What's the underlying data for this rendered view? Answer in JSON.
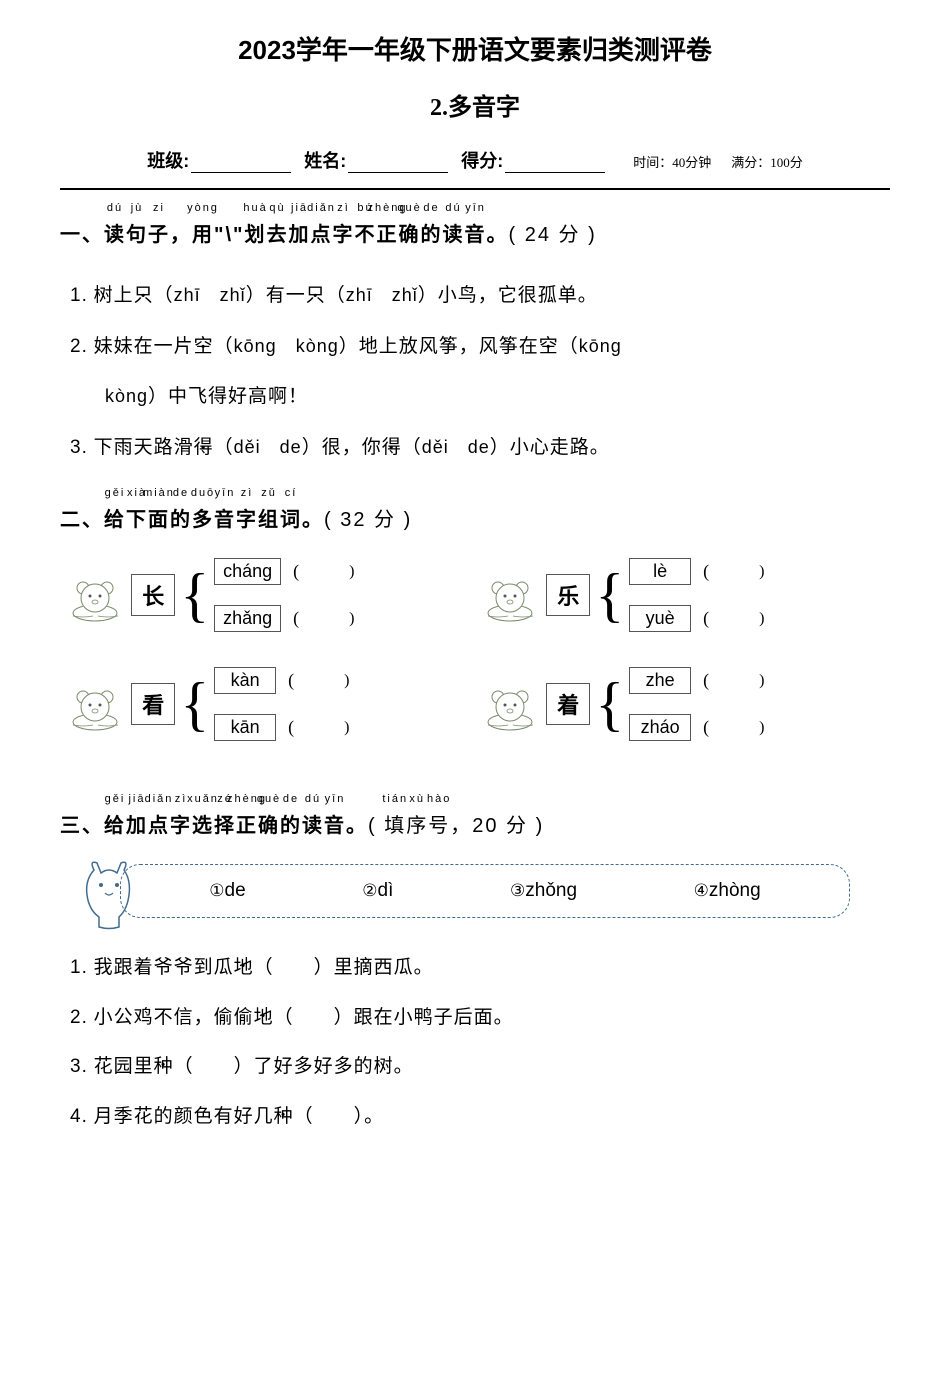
{
  "header": {
    "main_title": "2023学年一年级下册语文要素归类测评卷",
    "subtitle": "2.多音字",
    "class_label": "班级:",
    "name_label": "姓名:",
    "score_label": "得分:",
    "time_note": "时间：40分钟",
    "full_score_note": "满分：100分"
  },
  "section1": {
    "number": "一、",
    "title_chars": [
      "读",
      "句",
      "子",
      "，",
      "用",
      "\"",
      "\\",
      "\"",
      "划",
      "去",
      "加",
      "点",
      "字",
      "不",
      "正",
      "确",
      "的",
      "读",
      "音",
      "。"
    ],
    "title_pinyin": [
      "dú",
      "jù",
      "zi",
      "",
      "yòng",
      "",
      "",
      "",
      "huà",
      "qù",
      "jiā",
      "diǎn",
      "zì",
      "bú",
      "zhèng",
      "què",
      "de",
      "dú",
      "yīn",
      ""
    ],
    "points": "( 24 分 )",
    "items": [
      {
        "num": "1.",
        "parts": [
          {
            "t": "树上"
          },
          {
            "t": "只",
            "dot": true
          },
          {
            "t": "（"
          },
          {
            "t": "zhī　zhǐ",
            "py": true
          },
          {
            "t": "）有一"
          },
          {
            "t": "只",
            "dot": true
          },
          {
            "t": "（"
          },
          {
            "t": "zhī　zhǐ",
            "py": true
          },
          {
            "t": "）小鸟，它很孤单。"
          }
        ]
      },
      {
        "num": "2.",
        "parts": [
          {
            "t": "妹妹在一片"
          },
          {
            "t": "空",
            "dot": true
          },
          {
            "t": "（"
          },
          {
            "t": "kōng　kòng",
            "py": true
          },
          {
            "t": "）地上放风筝，风筝在"
          },
          {
            "t": "空",
            "dot": true
          },
          {
            "t": "（"
          },
          {
            "t": "kōng",
            "py": true
          }
        ],
        "line2": [
          {
            "t": "kòng",
            "py": true
          },
          {
            "t": "）中飞得好高啊！"
          }
        ]
      },
      {
        "num": "3.",
        "parts": [
          {
            "t": "下雨天路滑"
          },
          {
            "t": "得",
            "dot": true
          },
          {
            "t": "（"
          },
          {
            "t": "děi　de",
            "py": true
          },
          {
            "t": "）很，你"
          },
          {
            "t": "得",
            "dot": true
          },
          {
            "t": "（"
          },
          {
            "t": "děi　de",
            "py": true
          },
          {
            "t": "）小心走路。"
          }
        ]
      }
    ]
  },
  "section2": {
    "number": "二、",
    "title_chars": [
      "给",
      "下",
      "面",
      "的",
      "多",
      "音",
      "字",
      "组",
      "词",
      "。"
    ],
    "title_pinyin": [
      "gěi",
      "xià",
      "miàn",
      "de",
      "duō",
      "yīn",
      "zì",
      "zǔ",
      "cí",
      ""
    ],
    "points": "( 32 分 )",
    "groups": [
      {
        "char": "长",
        "readings": [
          "cháng",
          "zhǎng"
        ]
      },
      {
        "char": "乐",
        "readings": [
          "lè",
          "yuè"
        ]
      },
      {
        "char": "看",
        "readings": [
          "kàn",
          "kān"
        ]
      },
      {
        "char": "着",
        "readings": [
          "zhe",
          "zháo"
        ]
      }
    ]
  },
  "section3": {
    "number": "三、",
    "title_chars": [
      "给",
      "加",
      "点",
      "字",
      "选",
      "择",
      "正",
      "确",
      "的",
      "读",
      "音",
      "。"
    ],
    "title_pinyin": [
      "gěi",
      "jiā",
      "diǎn",
      "zì",
      "xuǎn",
      "zé",
      "zhèng",
      "què",
      "de",
      "dú",
      "yīn",
      ""
    ],
    "hint_text": "填 序 号 ，",
    "hint_pinyin": [
      "tián",
      "xù",
      "hào"
    ],
    "points": "20 分 )",
    "options": [
      {
        "n": "①",
        "p": "de"
      },
      {
        "n": "②",
        "p": "dì"
      },
      {
        "n": "③",
        "p": "zhǒng"
      },
      {
        "n": "④",
        "p": "zhòng"
      }
    ],
    "items": [
      {
        "num": "1.",
        "before": "我跟着爷爷到瓜",
        "dot": "地",
        "after": "（　　）里摘西瓜。"
      },
      {
        "num": "2.",
        "before": "小公鸡不信，偷偷",
        "dot": "地",
        "after": "（　　）跟在小鸭子后面。"
      },
      {
        "num": "3.",
        "before": "花园里",
        "dot": "种",
        "after": "（　　）了好多好多的树。"
      },
      {
        "num": "4.",
        "before": "月季花的颜色有好几",
        "dot": "种",
        "after": "（　　）。"
      }
    ]
  }
}
